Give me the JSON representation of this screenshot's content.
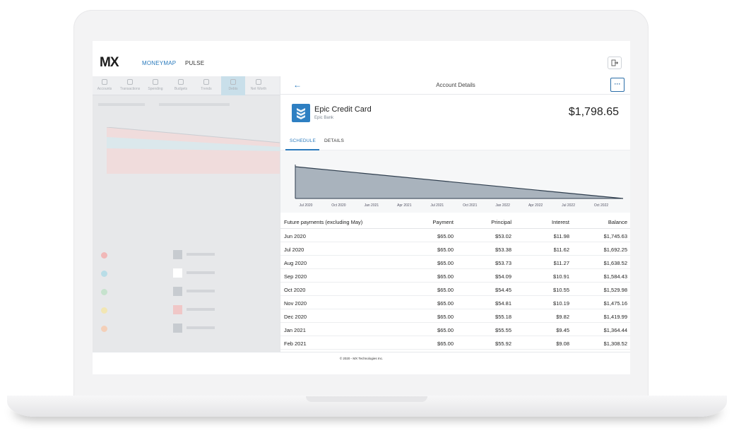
{
  "header": {
    "logo": "MX",
    "nav": [
      "MONEYMAP",
      "PULSE"
    ]
  },
  "background_tabs": [
    "Accounts",
    "Transactions",
    "Spending",
    "Budgets",
    "Trends",
    "Debts",
    "Net Worth"
  ],
  "panel": {
    "title": "Account Details",
    "account": {
      "name": "Epic Credit Card",
      "bank": "Epic Bank",
      "balance": "$1,798.65"
    },
    "tabs": [
      "SCHEDULE",
      "DETAILS"
    ],
    "active_tab": "SCHEDULE"
  },
  "chart_data": {
    "type": "area",
    "x": [
      "Jul 2020",
      "Oct 2020",
      "Jan 2021",
      "Apr 2021",
      "Jul 2021",
      "Oct 2021",
      "Jan 2022",
      "Apr 2022",
      "Jul 2022",
      "Oct 2022"
    ],
    "title": "",
    "xlabel": "",
    "ylabel": ""
  },
  "table": {
    "headers": [
      "Future payments (excluding May)",
      "Payment",
      "Principal",
      "Interest",
      "Balance"
    ],
    "rows": [
      [
        "Jun 2020",
        "$65.00",
        "$53.02",
        "$11.98",
        "$1,745.63"
      ],
      [
        "Jul 2020",
        "$65.00",
        "$53.38",
        "$11.62",
        "$1,692.25"
      ],
      [
        "Aug 2020",
        "$65.00",
        "$53.73",
        "$11.27",
        "$1,638.52"
      ],
      [
        "Sep 2020",
        "$65.00",
        "$54.09",
        "$10.91",
        "$1,584.43"
      ],
      [
        "Oct 2020",
        "$65.00",
        "$54.45",
        "$10.55",
        "$1,529.98"
      ],
      [
        "Nov 2020",
        "$65.00",
        "$54.81",
        "$10.19",
        "$1,475.16"
      ],
      [
        "Dec 2020",
        "$65.00",
        "$55.18",
        "$9.82",
        "$1,419.99"
      ],
      [
        "Jan 2021",
        "$65.00",
        "$55.55",
        "$9.45",
        "$1,364.44"
      ],
      [
        "Feb 2021",
        "$65.00",
        "$55.92",
        "$9.08",
        "$1,308.52"
      ]
    ]
  },
  "footer": "© 2020 - MX Technologies Inc.",
  "colors": {
    "accent": "#2b7bbd",
    "chart_fill": "#a9b3bd",
    "chart_line": "#2f3e4e"
  }
}
